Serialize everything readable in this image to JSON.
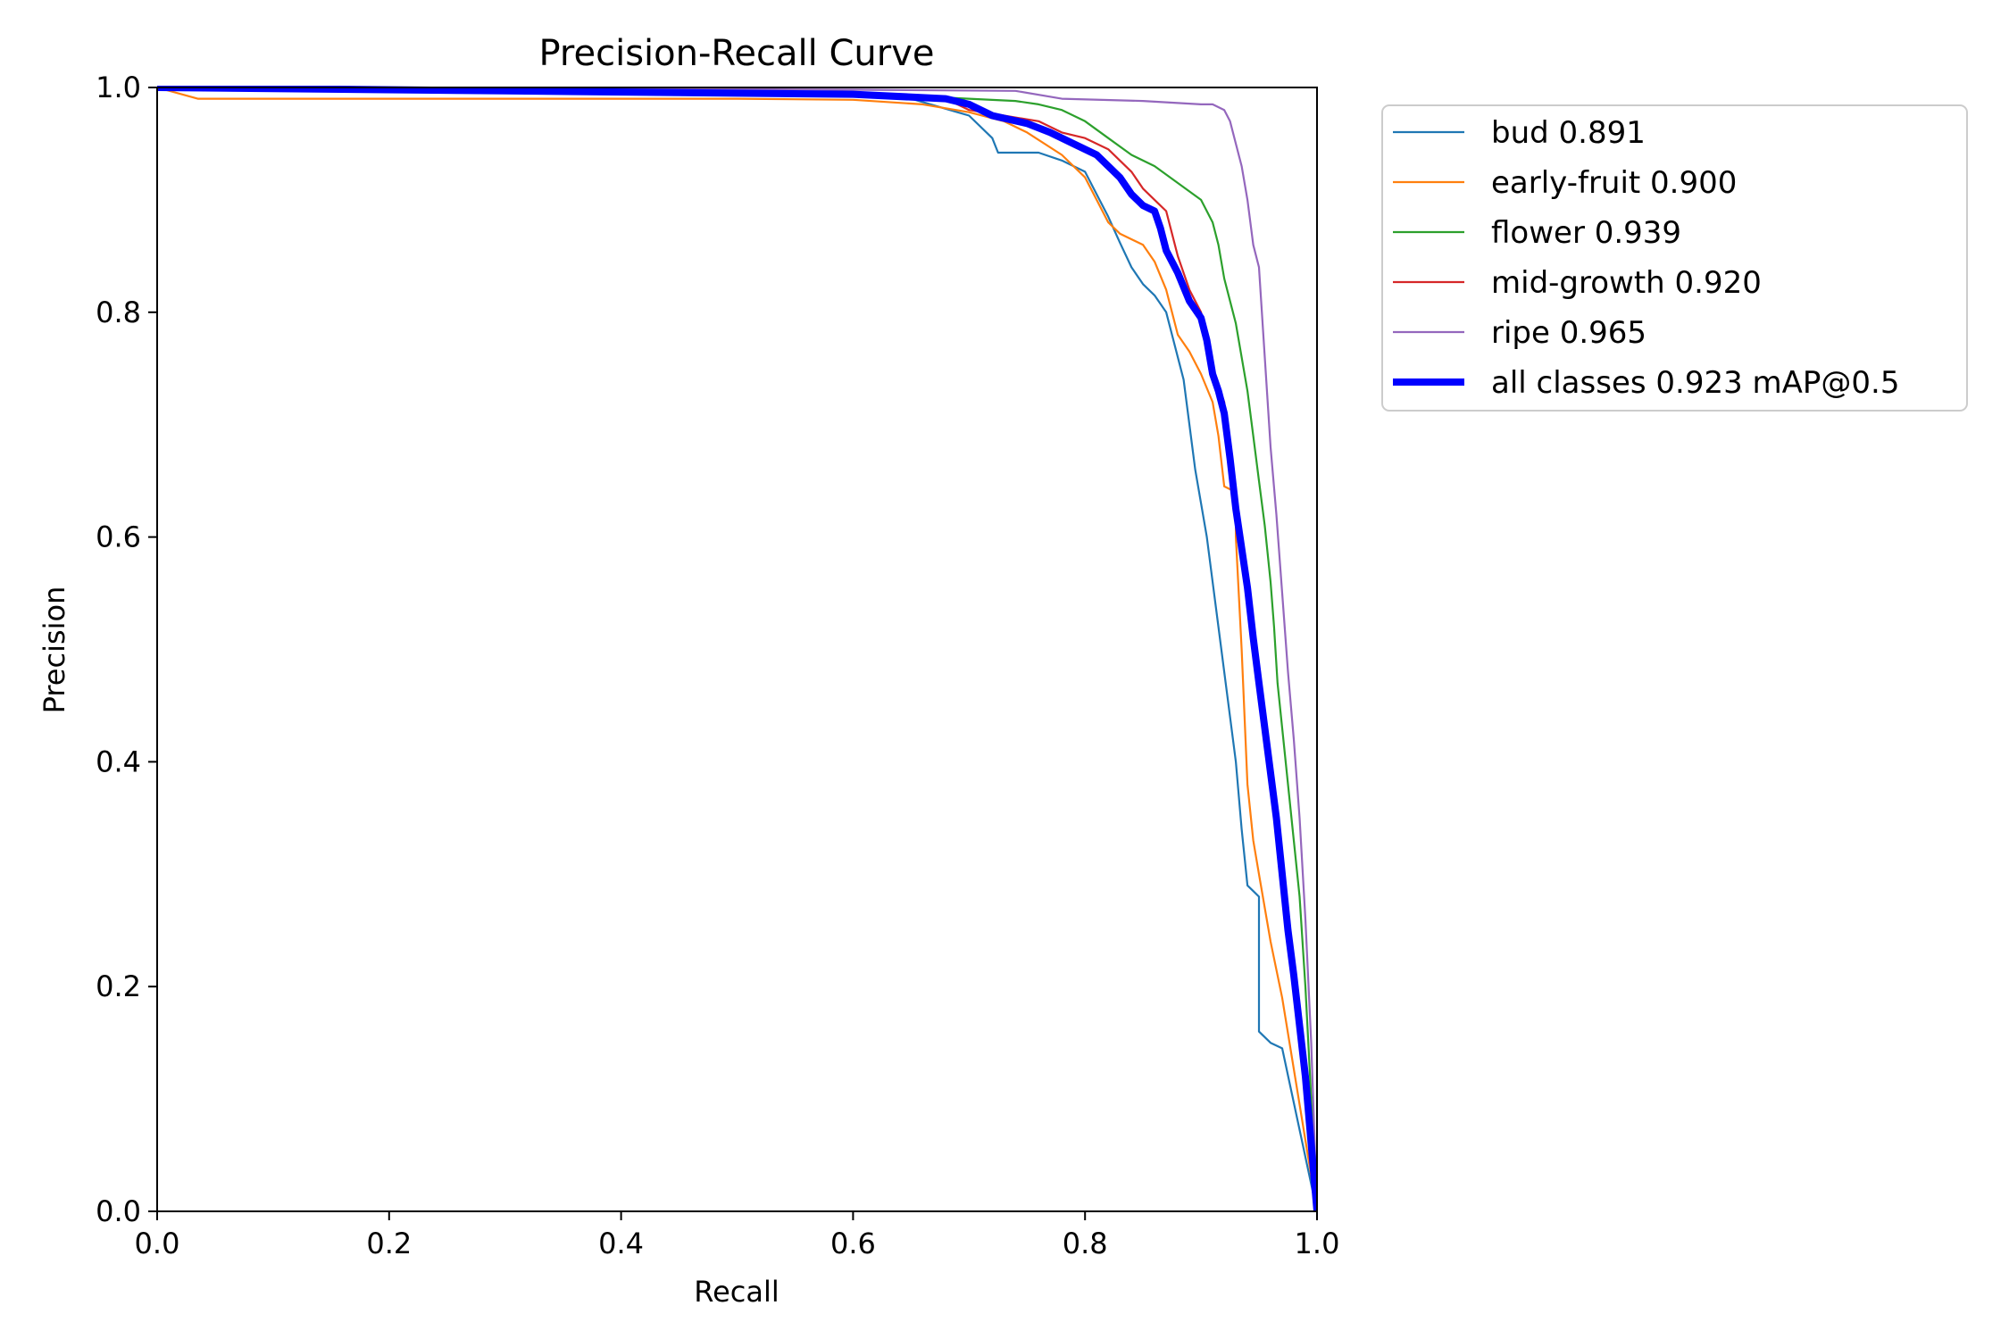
{
  "chart_data": {
    "type": "line",
    "title": "Precision-Recall Curve",
    "xlabel": "Recall",
    "ylabel": "Precision",
    "xlim": [
      0,
      1
    ],
    "ylim": [
      0,
      1
    ],
    "xticks": [
      "0.0",
      "0.2",
      "0.4",
      "0.6",
      "0.8",
      "1.0"
    ],
    "yticks": [
      "0.0",
      "0.2",
      "0.4",
      "0.6",
      "0.8",
      "1.0"
    ],
    "grid": false,
    "legend_position": "outside-top-right",
    "series": [
      {
        "name": "bud 0.891",
        "color": "#1f77b4",
        "linewidth": "thin",
        "points": [
          [
            0,
            1.0
          ],
          [
            0.05,
            0.998
          ],
          [
            0.3,
            0.996
          ],
          [
            0.55,
            0.994
          ],
          [
            0.65,
            0.99
          ],
          [
            0.7,
            0.975
          ],
          [
            0.72,
            0.955
          ],
          [
            0.725,
            0.942
          ],
          [
            0.76,
            0.942
          ],
          [
            0.78,
            0.935
          ],
          [
            0.8,
            0.925
          ],
          [
            0.81,
            0.905
          ],
          [
            0.82,
            0.885
          ],
          [
            0.83,
            0.862
          ],
          [
            0.84,
            0.84
          ],
          [
            0.85,
            0.825
          ],
          [
            0.86,
            0.815
          ],
          [
            0.87,
            0.8
          ],
          [
            0.875,
            0.78
          ],
          [
            0.88,
            0.76
          ],
          [
            0.885,
            0.74
          ],
          [
            0.89,
            0.7
          ],
          [
            0.895,
            0.66
          ],
          [
            0.9,
            0.63
          ],
          [
            0.905,
            0.6
          ],
          [
            0.91,
            0.56
          ],
          [
            0.915,
            0.52
          ],
          [
            0.92,
            0.48
          ],
          [
            0.925,
            0.44
          ],
          [
            0.93,
            0.4
          ],
          [
            0.935,
            0.34
          ],
          [
            0.94,
            0.29
          ],
          [
            0.945,
            0.285
          ],
          [
            0.95,
            0.28
          ],
          [
            0.95,
            0.16
          ],
          [
            0.96,
            0.15
          ],
          [
            0.97,
            0.145
          ],
          [
            1.0,
            0.0
          ]
        ]
      },
      {
        "name": "early-fruit 0.900",
        "color": "#ff7f0e",
        "linewidth": "thin",
        "points": [
          [
            0,
            1.0
          ],
          [
            0.035,
            0.99
          ],
          [
            0.25,
            0.99
          ],
          [
            0.5,
            0.99
          ],
          [
            0.6,
            0.989
          ],
          [
            0.66,
            0.985
          ],
          [
            0.7,
            0.978
          ],
          [
            0.73,
            0.97
          ],
          [
            0.75,
            0.96
          ],
          [
            0.78,
            0.94
          ],
          [
            0.8,
            0.92
          ],
          [
            0.81,
            0.9
          ],
          [
            0.82,
            0.88
          ],
          [
            0.83,
            0.87
          ],
          [
            0.85,
            0.86
          ],
          [
            0.86,
            0.845
          ],
          [
            0.87,
            0.82
          ],
          [
            0.875,
            0.8
          ],
          [
            0.88,
            0.78
          ],
          [
            0.89,
            0.765
          ],
          [
            0.9,
            0.745
          ],
          [
            0.91,
            0.72
          ],
          [
            0.915,
            0.69
          ],
          [
            0.92,
            0.645
          ],
          [
            0.93,
            0.64
          ],
          [
            0.93,
            0.6
          ],
          [
            0.935,
            0.5
          ],
          [
            0.94,
            0.38
          ],
          [
            0.945,
            0.33
          ],
          [
            0.95,
            0.3
          ],
          [
            0.96,
            0.24
          ],
          [
            0.97,
            0.19
          ],
          [
            1.0,
            0.0
          ]
        ]
      },
      {
        "name": "flower 0.939",
        "color": "#2ca02c",
        "linewidth": "thin",
        "points": [
          [
            0,
            1.0
          ],
          [
            0.3,
            0.998
          ],
          [
            0.6,
            0.995
          ],
          [
            0.7,
            0.99
          ],
          [
            0.74,
            0.988
          ],
          [
            0.76,
            0.985
          ],
          [
            0.78,
            0.98
          ],
          [
            0.8,
            0.97
          ],
          [
            0.82,
            0.955
          ],
          [
            0.84,
            0.94
          ],
          [
            0.86,
            0.93
          ],
          [
            0.88,
            0.915
          ],
          [
            0.9,
            0.9
          ],
          [
            0.91,
            0.88
          ],
          [
            0.915,
            0.86
          ],
          [
            0.92,
            0.83
          ],
          [
            0.925,
            0.81
          ],
          [
            0.93,
            0.79
          ],
          [
            0.935,
            0.76
          ],
          [
            0.94,
            0.73
          ],
          [
            0.945,
            0.69
          ],
          [
            0.95,
            0.65
          ],
          [
            0.955,
            0.61
          ],
          [
            0.96,
            0.56
          ],
          [
            0.963,
            0.52
          ],
          [
            0.966,
            0.47
          ],
          [
            0.97,
            0.43
          ],
          [
            0.975,
            0.38
          ],
          [
            0.98,
            0.33
          ],
          [
            0.985,
            0.28
          ],
          [
            0.99,
            0.2
          ],
          [
            1.0,
            0.0
          ]
        ]
      },
      {
        "name": "mid-growth 0.920",
        "color": "#d62728",
        "linewidth": "thin",
        "points": [
          [
            0,
            1.0
          ],
          [
            0.3,
            0.997
          ],
          [
            0.6,
            0.994
          ],
          [
            0.68,
            0.99
          ],
          [
            0.7,
            0.98
          ],
          [
            0.73,
            0.975
          ],
          [
            0.76,
            0.97
          ],
          [
            0.78,
            0.96
          ],
          [
            0.8,
            0.955
          ],
          [
            0.82,
            0.945
          ],
          [
            0.83,
            0.935
          ],
          [
            0.84,
            0.925
          ],
          [
            0.85,
            0.91
          ],
          [
            0.86,
            0.9
          ],
          [
            0.87,
            0.89
          ],
          [
            0.875,
            0.87
          ],
          [
            0.88,
            0.85
          ],
          [
            0.89,
            0.82
          ],
          [
            0.9,
            0.8
          ],
          [
            0.905,
            0.78
          ],
          [
            0.91,
            0.75
          ],
          [
            0.92,
            0.72
          ],
          [
            0.925,
            0.66
          ],
          [
            0.93,
            0.62
          ],
          [
            0.935,
            0.58
          ],
          [
            0.94,
            0.54
          ],
          [
            0.945,
            0.5
          ],
          [
            0.95,
            0.46
          ],
          [
            0.955,
            0.42
          ],
          [
            0.96,
            0.38
          ],
          [
            0.965,
            0.34
          ],
          [
            0.97,
            0.31
          ],
          [
            0.975,
            0.27
          ],
          [
            0.98,
            0.22
          ],
          [
            0.99,
            0.13
          ],
          [
            1.0,
            0.0
          ]
        ]
      },
      {
        "name": "ripe 0.965",
        "color": "#9467bd",
        "linewidth": "thin",
        "points": [
          [
            0,
            1.0
          ],
          [
            0.4,
            0.999
          ],
          [
            0.6,
            0.998
          ],
          [
            0.74,
            0.997
          ],
          [
            0.78,
            0.99
          ],
          [
            0.85,
            0.988
          ],
          [
            0.9,
            0.985
          ],
          [
            0.91,
            0.985
          ],
          [
            0.92,
            0.98
          ],
          [
            0.925,
            0.97
          ],
          [
            0.93,
            0.95
          ],
          [
            0.935,
            0.93
          ],
          [
            0.94,
            0.9
          ],
          [
            0.945,
            0.86
          ],
          [
            0.95,
            0.84
          ],
          [
            0.955,
            0.76
          ],
          [
            0.96,
            0.68
          ],
          [
            0.965,
            0.62
          ],
          [
            0.97,
            0.55
          ],
          [
            0.975,
            0.48
          ],
          [
            0.98,
            0.42
          ],
          [
            0.985,
            0.35
          ],
          [
            0.99,
            0.26
          ],
          [
            0.995,
            0.15
          ],
          [
            1.0,
            0.0
          ]
        ]
      },
      {
        "name": "all classes 0.923 mAP@0.5",
        "color": "#0000ff",
        "linewidth": "thick",
        "points": [
          [
            0,
            1.0
          ],
          [
            0.3,
            0.997
          ],
          [
            0.6,
            0.994
          ],
          [
            0.68,
            0.99
          ],
          [
            0.7,
            0.985
          ],
          [
            0.72,
            0.975
          ],
          [
            0.75,
            0.968
          ],
          [
            0.77,
            0.96
          ],
          [
            0.79,
            0.95
          ],
          [
            0.81,
            0.94
          ],
          [
            0.82,
            0.93
          ],
          [
            0.83,
            0.92
          ],
          [
            0.84,
            0.905
          ],
          [
            0.85,
            0.895
          ],
          [
            0.86,
            0.89
          ],
          [
            0.865,
            0.875
          ],
          [
            0.87,
            0.855
          ],
          [
            0.88,
            0.835
          ],
          [
            0.89,
            0.81
          ],
          [
            0.9,
            0.795
          ],
          [
            0.905,
            0.775
          ],
          [
            0.91,
            0.745
          ],
          [
            0.915,
            0.73
          ],
          [
            0.92,
            0.71
          ],
          [
            0.925,
            0.67
          ],
          [
            0.93,
            0.625
          ],
          [
            0.935,
            0.59
          ],
          [
            0.94,
            0.555
          ],
          [
            0.945,
            0.51
          ],
          [
            0.95,
            0.47
          ],
          [
            0.955,
            0.43
          ],
          [
            0.96,
            0.39
          ],
          [
            0.965,
            0.35
          ],
          [
            0.97,
            0.3
          ],
          [
            0.975,
            0.25
          ],
          [
            0.98,
            0.21
          ],
          [
            0.99,
            0.12
          ],
          [
            1.0,
            0.0
          ]
        ]
      }
    ]
  }
}
